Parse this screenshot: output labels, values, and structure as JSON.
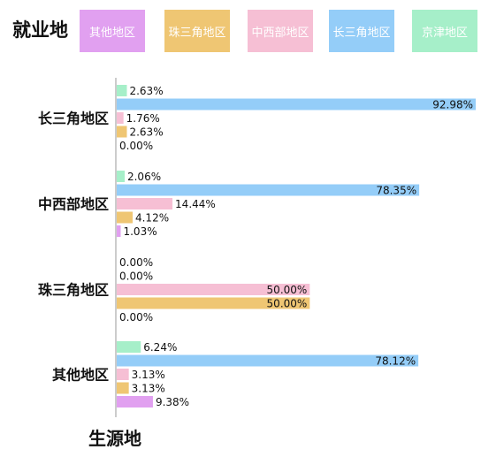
{
  "chart_data": {
    "type": "bar",
    "orientation": "horizontal",
    "legend_title": "就业地",
    "axis_label": "生源地",
    "legend_position": "top",
    "categories": [
      "长三角地区",
      "中西部地区",
      "珠三角地区",
      "其他地区"
    ],
    "series": [
      {
        "name": "京津地区",
        "color": "#a6efc9",
        "values": [
          2.63,
          2.06,
          0.0,
          6.24
        ]
      },
      {
        "name": "长三角地区",
        "color": "#94cdf8",
        "values": [
          92.98,
          78.35,
          0.0,
          78.12
        ]
      },
      {
        "name": "中西部地区",
        "color": "#f6bfd4",
        "values": [
          1.76,
          14.44,
          50.0,
          3.13
        ]
      },
      {
        "name": "珠三角地区",
        "color": "#efc673",
        "values": [
          2.63,
          4.12,
          50.0,
          3.13
        ]
      },
      {
        "name": "其他地区",
        "color": "#e1a0f0",
        "values": [
          0.0,
          1.03,
          0.0,
          9.38
        ]
      }
    ],
    "value_labels": [
      [
        "2.63%",
        "92.98%",
        "1.76%",
        "2.63%",
        "0.00%"
      ],
      [
        "2.06%",
        "78.35%",
        "14.44%",
        "4.12%",
        "1.03%"
      ],
      [
        "0.00%",
        "0.00%",
        "50.00%",
        "50.00%",
        "0.00%"
      ],
      [
        "6.24%",
        "78.12%",
        "3.13%",
        "3.13%",
        "9.38%"
      ]
    ],
    "legend_order": [
      "其他地区",
      "珠三角地区",
      "中西部地区",
      "长三角地区",
      "京津地区"
    ],
    "xlim": [
      0,
      93
    ]
  }
}
